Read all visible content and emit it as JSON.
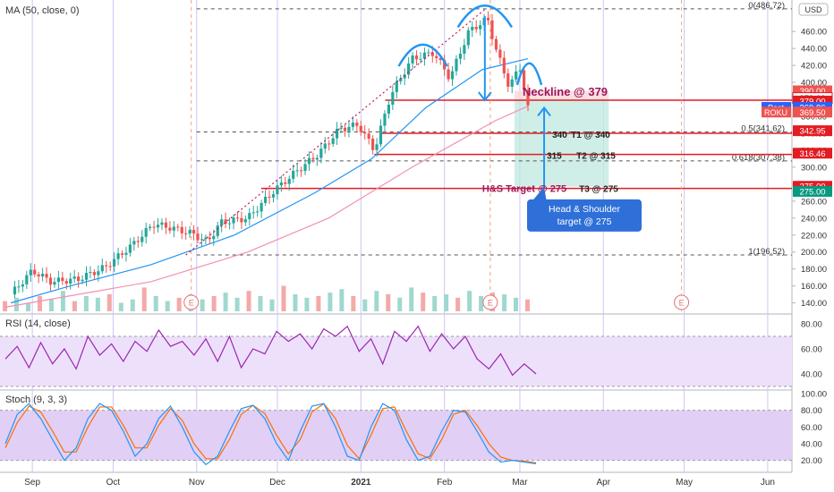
{
  "colors": {
    "up": "#26a69a",
    "down": "#ef5350",
    "ma": "#2196f3",
    "ma_slow": "#f48fb1",
    "red_line": "#e31b23",
    "arrow": "#2196f3",
    "target_zone": "#bfe8df",
    "rsi": "#9c27b0",
    "stoch_k": "#2196f3",
    "stoch_d": "#ff6d00",
    "panel_fill": "#ede0fb",
    "callout": "#2f6fd8"
  },
  "header": {
    "ma_label": "MA (50, close, 0)",
    "rsi_label": "RSI (14, close)",
    "stoch_label": "Stoch (9, 3, 3)",
    "currency": "USD"
  },
  "annotations": {
    "neckline": "Neckline @ 379",
    "t1_value": "340",
    "t1_label": "T1 @ 340",
    "t2_value": "315",
    "t2_label": "T2 @ 315",
    "target_label": "H&S Target @ 275",
    "t3_label": "T3 @ 275",
    "callout": [
      "Head & Shoulder",
      "target @ 275"
    ],
    "earnings_marker": "E",
    "fib_0": "0(486.72)",
    "fib_05": "0.5(341.62)",
    "fib_0618": "0.618(307.38)",
    "fib_1": "1(196.52)"
  },
  "price_tags": [
    {
      "label": "",
      "value": "390.00",
      "price": 390,
      "bg": "#ef5350"
    },
    {
      "label": "",
      "value": "379.00",
      "price": 381.5,
      "bg": "#ffffff",
      "fg": "#333333"
    },
    {
      "label": "",
      "value": "379.00",
      "price": 378,
      "bg": "#e31b23"
    },
    {
      "label": "Post",
      "value": "369.86",
      "price": 370.5,
      "bg": "#2962ff"
    },
    {
      "label": "ROKU",
      "value": "369.50",
      "price": 365,
      "bg": "#ef5350"
    },
    {
      "label": "",
      "value": "342.95",
      "price": 343,
      "bg": "#e31b23"
    },
    {
      "label": "",
      "value": "316.46",
      "price": 316.5,
      "bg": "#e31b23"
    },
    {
      "label": "",
      "value": "275.00",
      "price": 277.5,
      "bg": "#e31b23"
    },
    {
      "label": "",
      "value": "275.00",
      "price": 271.5,
      "bg": "#089981"
    }
  ],
  "chart_data": {
    "type": "candlestick",
    "symbol": "ROKU",
    "x_ticks": [
      "Sep",
      "Oct",
      "Nov",
      "Dec",
      "2021",
      "Feb",
      "Mar",
      "Apr",
      "May",
      "Jun"
    ],
    "price_axis": {
      "ticks": [
        140,
        160,
        180,
        200,
        220,
        240,
        260,
        280,
        300,
        320,
        340,
        360,
        380,
        400,
        420,
        440,
        460
      ],
      "range": [
        128,
        495
      ]
    },
    "levels": {
      "neckline": 379,
      "t1": 340,
      "t2": 315,
      "t3": 275,
      "fib_0": 486.72,
      "fib_05": 341.62,
      "fib_0618": 307.38,
      "fib_1": 196.52
    },
    "close_path": [
      {
        "date": "2020-08-24",
        "price": 150
      },
      {
        "date": "2020-09-01",
        "price": 178
      },
      {
        "date": "2020-09-08",
        "price": 165
      },
      {
        "date": "2020-09-18",
        "price": 168
      },
      {
        "date": "2020-09-28",
        "price": 182
      },
      {
        "date": "2020-10-08",
        "price": 208
      },
      {
        "date": "2020-10-16",
        "price": 233
      },
      {
        "date": "2020-10-22",
        "price": 229
      },
      {
        "date": "2020-10-30",
        "price": 222
      },
      {
        "date": "2020-11-05",
        "price": 212
      },
      {
        "date": "2020-11-10",
        "price": 235
      },
      {
        "date": "2020-11-20",
        "price": 240
      },
      {
        "date": "2020-11-30",
        "price": 273
      },
      {
        "date": "2020-12-08",
        "price": 295
      },
      {
        "date": "2020-12-16",
        "price": 315
      },
      {
        "date": "2020-12-24",
        "price": 345
      },
      {
        "date": "2020-12-31",
        "price": 350
      },
      {
        "date": "2021-01-06",
        "price": 320
      },
      {
        "date": "2021-01-12",
        "price": 385
      },
      {
        "date": "2021-01-20",
        "price": 428
      },
      {
        "date": "2021-01-28",
        "price": 435
      },
      {
        "date": "2021-02-03",
        "price": 405
      },
      {
        "date": "2021-02-10",
        "price": 460
      },
      {
        "date": "2021-02-17",
        "price": 475
      },
      {
        "date": "2021-02-20",
        "price": 440
      },
      {
        "date": "2021-02-25",
        "price": 395
      },
      {
        "date": "2021-03-01",
        "price": 418
      },
      {
        "date": "2021-03-04",
        "price": 369.5
      }
    ],
    "ma50_path": [
      {
        "date": "2020-08-24",
        "price": 140
      },
      {
        "date": "2020-09-15",
        "price": 160
      },
      {
        "date": "2020-10-15",
        "price": 185
      },
      {
        "date": "2020-11-15",
        "price": 220
      },
      {
        "date": "2020-12-15",
        "price": 270
      },
      {
        "date": "2021-01-05",
        "price": 310
      },
      {
        "date": "2021-01-25",
        "price": 370
      },
      {
        "date": "2021-02-15",
        "price": 415
      },
      {
        "date": "2021-03-04",
        "price": 428
      }
    ],
    "rsi": {
      "axis_ticks": [
        40,
        60,
        80
      ],
      "range": [
        30,
        85
      ],
      "overbought": 70,
      "oversold": 30,
      "values": [
        52,
        62,
        45,
        65,
        48,
        60,
        44,
        70,
        55,
        64,
        50,
        66,
        58,
        75,
        62,
        66,
        55,
        68,
        50,
        70,
        45,
        60,
        56,
        74,
        66,
        72,
        60,
        76,
        70,
        78,
        58,
        68,
        48,
        74,
        66,
        78,
        58,
        72,
        60,
        70,
        52,
        44,
        56,
        39,
        48,
        40
      ]
    },
    "stoch": {
      "axis_ticks": [
        20,
        40,
        60,
        80,
        100
      ],
      "range": [
        10,
        100
      ],
      "upper": 80,
      "lower": 20,
      "k": [
        40,
        75,
        88,
        70,
        45,
        20,
        35,
        70,
        88,
        80,
        55,
        25,
        40,
        70,
        85,
        60,
        30,
        15,
        25,
        55,
        82,
        86,
        70,
        40,
        20,
        55,
        85,
        88,
        60,
        25,
        20,
        60,
        88,
        80,
        45,
        20,
        25,
        55,
        80,
        78,
        55,
        30,
        18,
        20,
        18,
        16
      ],
      "d": [
        35,
        65,
        85,
        78,
        55,
        30,
        30,
        60,
        84,
        84,
        62,
        35,
        35,
        62,
        82,
        68,
        40,
        22,
        22,
        45,
        75,
        86,
        76,
        50,
        28,
        45,
        78,
        88,
        70,
        38,
        22,
        50,
        82,
        84,
        55,
        28,
        22,
        45,
        75,
        80,
        62,
        40,
        24,
        20,
        19,
        17
      ]
    },
    "volume": {
      "values": [
        6,
        8,
        5,
        9,
        7,
        12,
        6,
        9,
        8,
        10,
        5,
        7,
        14,
        9,
        6,
        8,
        10,
        7,
        9,
        11,
        8,
        12,
        9,
        7,
        15,
        10,
        8,
        9,
        11,
        13,
        9,
        7,
        12,
        10,
        8,
        14,
        11,
        9,
        10,
        8,
        12,
        9,
        11,
        10,
        8,
        7
      ]
    }
  }
}
